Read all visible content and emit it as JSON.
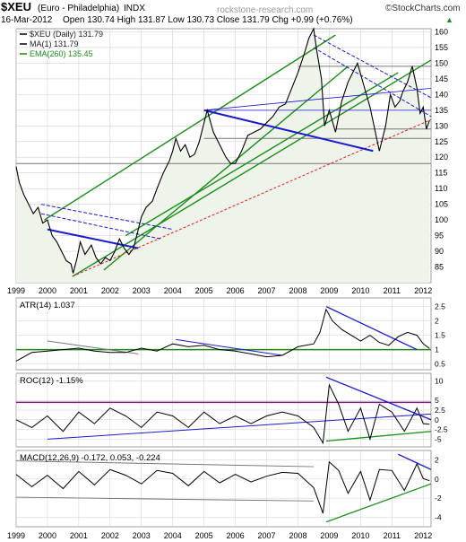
{
  "header": {
    "symbol": "$XEU",
    "name": "(Euro - Philadelphia)",
    "exchange": "INDX",
    "date": "16-Mar-2012",
    "ohlc": "Open 130.74  High 131.87  Low 130.73  Close 131.79  Chg +0.99 (+0.76%)",
    "arrow": "▲",
    "watermark": "rockstone-research.com",
    "brand": "©StockCharts.com"
  },
  "colors": {
    "price_line": "#000000",
    "area_fill": "#eef4ea",
    "channel_green": "#1a8c1a",
    "trend_blue": "#1a1acc",
    "support_red": "#dd2222",
    "grid": "#cfcfcf",
    "atr_green": "#1a8c1a",
    "roc_purple": "#7a1a7a",
    "macd_red": "#cc2222",
    "macd_blue": "#2266dd"
  },
  "chart_data": [
    {
      "type": "line",
      "panel": "price",
      "title": "$XEU (Daily) 131.79",
      "legend": [
        {
          "label": "$XEU (Daily) 131.79",
          "color": "#000000"
        },
        {
          "label": "MA(1) 131.79",
          "color": "#000000"
        },
        {
          "label": "EMA(260) 135.45",
          "color": "#1a8c1a"
        }
      ],
      "x_ticks": [
        "1999",
        "2000",
        "2001",
        "2002",
        "2003",
        "2004",
        "2005",
        "2006",
        "2007",
        "2008",
        "2009",
        "2010",
        "2011",
        "2012"
      ],
      "y_ticks": [
        85,
        90,
        95,
        100,
        105,
        110,
        115,
        120,
        125,
        130,
        135,
        140,
        145,
        150,
        155,
        160
      ],
      "ylim": [
        80,
        161
      ],
      "xlim": [
        1999.0,
        2012.25
      ],
      "grid": true,
      "legend_position": "top-left",
      "series": [
        {
          "x": [
            1999.0,
            1999.1,
            1999.25,
            1999.4,
            1999.55,
            1999.7,
            1999.85,
            2000.0,
            2000.15,
            2000.3,
            2000.45,
            2000.6,
            2000.75,
            2000.82,
            2000.95,
            2001.05,
            2001.2,
            2001.4,
            2001.55,
            2001.7,
            2001.85,
            2002.0,
            2002.15,
            2002.3,
            2002.45,
            2002.6,
            2002.75,
            2002.9,
            2003.0,
            2003.15,
            2003.35,
            2003.5,
            2003.7,
            2003.9,
            2004.0,
            2004.1,
            2004.25,
            2004.4,
            2004.55,
            2004.7,
            2004.85,
            2005.0,
            2005.1,
            2005.3,
            2005.5,
            2005.7,
            2005.85,
            2006.0,
            2006.2,
            2006.4,
            2006.6,
            2006.8,
            2007.0,
            2007.2,
            2007.4,
            2007.6,
            2007.8,
            2008.0,
            2008.2,
            2008.35,
            2008.5,
            2008.6,
            2008.75,
            2008.85,
            2009.0,
            2009.2,
            2009.4,
            2009.6,
            2009.8,
            2009.9,
            2010.1,
            2010.3,
            2010.45,
            2010.6,
            2010.8,
            2010.95,
            2011.1,
            2011.25,
            2011.35,
            2011.5,
            2011.65,
            2011.8,
            2011.9,
            2012.0,
            2012.1,
            2012.2
          ],
          "y": [
            117,
            112,
            108,
            105,
            102,
            104,
            99,
            100,
            95,
            93,
            90,
            87,
            86,
            83,
            88,
            93,
            89,
            92,
            88,
            86,
            88,
            87,
            90,
            94,
            91,
            89,
            91,
            97,
            101,
            104,
            106,
            110,
            115,
            119,
            122,
            126,
            122,
            124,
            120,
            121,
            125,
            131,
            135,
            128,
            124,
            120,
            118,
            118,
            122,
            127,
            128,
            129,
            131,
            133,
            136,
            137,
            142,
            147,
            153,
            158,
            161,
            154,
            145,
            130,
            135,
            128,
            138,
            144,
            148,
            150,
            143,
            136,
            129,
            122,
            130,
            140,
            136,
            138,
            141,
            144,
            149,
            142,
            134,
            136,
            129,
            131.79
          ]
        }
      ]
    },
    {
      "type": "line",
      "panel": "atr",
      "title": "ATR(14) 1.037",
      "y_ticks": [
        0.5,
        1.0,
        1.5,
        2.0,
        2.5
      ],
      "ylim": [
        0.3,
        2.8
      ],
      "series": [
        {
          "x": [
            1999.0,
            1999.5,
            2000.0,
            2000.5,
            2001.0,
            2001.5,
            2002.0,
            2002.5,
            2003.0,
            2003.5,
            2004.0,
            2004.5,
            2005.0,
            2005.5,
            2006.0,
            2006.5,
            2007.0,
            2007.5,
            2008.0,
            2008.5,
            2008.7,
            2008.9,
            2009.1,
            2009.4,
            2009.7,
            2010.0,
            2010.3,
            2010.6,
            2010.9,
            2011.2,
            2011.5,
            2011.8,
            2012.0,
            2012.2
          ],
          "y": [
            0.6,
            0.9,
            0.95,
            1.0,
            1.05,
            0.95,
            0.9,
            0.9,
            1.05,
            0.95,
            1.2,
            1.1,
            1.15,
            1.0,
            0.95,
            0.85,
            0.75,
            0.8,
            1.1,
            1.2,
            1.6,
            2.4,
            2.0,
            1.7,
            1.5,
            1.3,
            1.5,
            1.25,
            1.15,
            1.45,
            1.6,
            1.5,
            1.2,
            1.04
          ]
        }
      ]
    },
    {
      "type": "line",
      "panel": "roc",
      "title": "ROC(12) -1.15%",
      "y_ticks": [
        -5,
        -2.5,
        0,
        2.5,
        5,
        10
      ],
      "ylim": [
        -7,
        12
      ],
      "series": [
        {
          "x": [
            1999.0,
            1999.5,
            2000.0,
            2000.5,
            2001.0,
            2001.5,
            2002.0,
            2002.5,
            2003.0,
            2003.5,
            2004.0,
            2004.5,
            2005.0,
            2005.5,
            2006.0,
            2006.5,
            2007.0,
            2007.5,
            2008.0,
            2008.5,
            2008.8,
            2009.0,
            2009.3,
            2009.6,
            2010.0,
            2010.3,
            2010.6,
            2011.0,
            2011.4,
            2011.8,
            2012.0,
            2012.2
          ],
          "y": [
            0,
            -2,
            1,
            -3,
            2,
            -1,
            3,
            1,
            -2,
            2,
            1,
            -2,
            2,
            -1,
            1,
            -1,
            1,
            2,
            1,
            -2,
            -6,
            9,
            4,
            -3,
            3,
            -5,
            4,
            2,
            -3,
            3,
            -1,
            -1.15
          ]
        }
      ]
    },
    {
      "type": "line",
      "panel": "macd",
      "title": "MACD(12,26,9) -0.172, 0.053, -0.224",
      "y_ticks": [
        -4,
        -2,
        0,
        2
      ],
      "ylim": [
        -5,
        3
      ],
      "series": [
        {
          "x": [
            1999.0,
            1999.5,
            2000.0,
            2000.5,
            2001.0,
            2001.5,
            2002.0,
            2002.5,
            2003.0,
            2003.5,
            2004.0,
            2004.5,
            2005.0,
            2005.5,
            2006.0,
            2006.5,
            2007.0,
            2007.5,
            2008.0,
            2008.5,
            2008.8,
            2009.0,
            2009.3,
            2009.6,
            2010.0,
            2010.3,
            2010.6,
            2011.0,
            2011.4,
            2011.8,
            2012.0,
            2012.2
          ],
          "y": [
            0.5,
            -0.8,
            0.4,
            -1.0,
            0.8,
            -0.6,
            1.0,
            0.4,
            -0.5,
            0.9,
            0.6,
            -0.7,
            0.8,
            -0.4,
            0.5,
            -0.3,
            0.3,
            0.7,
            0.6,
            -0.9,
            -3.6,
            1.8,
            0.9,
            -1.5,
            0.8,
            -2.2,
            1.0,
            0.9,
            -1.2,
            1.6,
            0.05,
            -0.172
          ]
        }
      ]
    }
  ]
}
